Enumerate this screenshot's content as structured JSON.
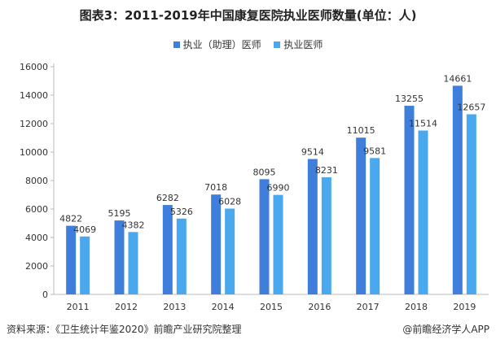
{
  "title": "图表3：2011-2019年中国康复医院执业医师数量(单位：人)",
  "footer": {
    "source": "资料来源：《卫生统计年鉴2020》前瞻产业研究院整理",
    "brand": "@前瞻经济学人APP"
  },
  "colors": {
    "series1": "#3f7fdb",
    "series2": "#4aa8ee",
    "axis": "#bbbbbb"
  },
  "chart_data": {
    "type": "bar",
    "title": "图表3：2011-2019年中国康复医院执业医师数量(单位：人)",
    "xlabel": "",
    "ylabel": "",
    "categories": [
      "2011",
      "2012",
      "2013",
      "2014",
      "2015",
      "2016",
      "2017",
      "2018",
      "2019"
    ],
    "ylim": [
      0,
      16000
    ],
    "yticks": [
      0,
      2000,
      4000,
      6000,
      8000,
      10000,
      12000,
      14000,
      16000
    ],
    "grid": false,
    "legend": "top-center",
    "series": [
      {
        "name": "执业（助理）医师",
        "values": [
          4822,
          5195,
          6282,
          7018,
          8095,
          9514,
          11015,
          13255,
          14661
        ]
      },
      {
        "name": "执业医师",
        "values": [
          4069,
          4382,
          5326,
          6028,
          6990,
          8231,
          9581,
          11514,
          12657
        ]
      }
    ]
  }
}
